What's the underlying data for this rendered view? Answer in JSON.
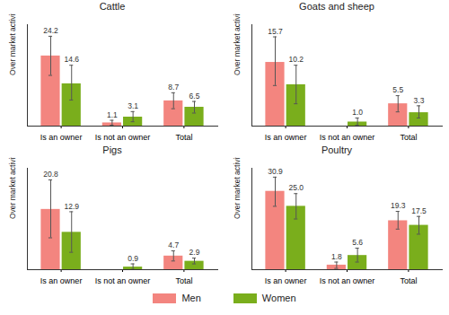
{
  "chart_data": [
    {
      "type": "bar",
      "title": "Cattle",
      "ylabel": "Over market activities (%)",
      "categories": [
        "Is an owner",
        "Is not an owner",
        "Total"
      ],
      "series": [
        {
          "name": "Men",
          "color": "#f3857f",
          "values": [
            24.2,
            1.1,
            8.7
          ],
          "value_labels": [
            "24.2",
            "1.1",
            "8.7"
          ],
          "error_low": [
            17.5,
            0.3,
            6.0
          ],
          "error_high": [
            31.0,
            2.0,
            11.5
          ]
        },
        {
          "name": "Women",
          "color": "#7aae1c",
          "values": [
            14.6,
            3.1,
            6.5
          ],
          "value_labels": [
            "14.6",
            "3.1",
            "6.5"
          ],
          "error_low": [
            9.0,
            1.5,
            4.5
          ],
          "error_high": [
            21.0,
            5.0,
            8.5
          ]
        }
      ],
      "ylim": [
        0,
        35
      ],
      "tick_labels": "x",
      "data_labels": true,
      "legend": "bottom"
    },
    {
      "type": "bar",
      "title": "Goats and sheep",
      "ylabel": "Over market activities (%)",
      "categories": [
        "Is an owner",
        "Is not an owner",
        "Total"
      ],
      "series": [
        {
          "name": "Men",
          "color": "#f3857f",
          "values": [
            15.7,
            null,
            5.5
          ],
          "value_labels": [
            "15.7",
            null,
            "5.5"
          ],
          "error_low": [
            10.0,
            null,
            3.5
          ],
          "error_high": [
            22.0,
            null,
            7.5
          ]
        },
        {
          "name": "Women",
          "color": "#7aae1c",
          "values": [
            10.2,
            1.0,
            3.3
          ],
          "value_labels": [
            "10.2",
            "1.0",
            "3.3"
          ],
          "error_low": [
            5.5,
            0.2,
            2.0
          ],
          "error_high": [
            15.0,
            2.0,
            5.0
          ]
        }
      ],
      "ylim": [
        0,
        25
      ],
      "tick_labels": "x",
      "data_labels": true,
      "legend": "bottom"
    },
    {
      "type": "bar",
      "title": "Pigs",
      "ylabel": "Over market activities (%)",
      "categories": [
        "Is an owner",
        "Is not an owner",
        "Total"
      ],
      "series": [
        {
          "name": "Men",
          "color": "#f3857f",
          "values": [
            20.8,
            null,
            4.7
          ],
          "value_labels": [
            "20.8",
            null,
            "4.7"
          ],
          "error_low": [
            11.0,
            null,
            3.0
          ],
          "error_high": [
            31.0,
            null,
            6.5
          ]
        },
        {
          "name": "Women",
          "color": "#7aae1c",
          "values": [
            12.9,
            0.9,
            2.9
          ],
          "value_labels": [
            "12.9",
            "0.9",
            "2.9"
          ],
          "error_low": [
            6.0,
            0.1,
            2.0
          ],
          "error_high": [
            20.0,
            2.0,
            4.0
          ]
        }
      ],
      "ylim": [
        0,
        35
      ],
      "tick_labels": "x",
      "data_labels": true,
      "legend": "bottom"
    },
    {
      "type": "bar",
      "title": "Poultry",
      "ylabel": "Over market activities (%)",
      "categories": [
        "Is an owner",
        "Is not an owner",
        "Total"
      ],
      "series": [
        {
          "name": "Men",
          "color": "#f3857f",
          "values": [
            30.9,
            1.8,
            19.3
          ],
          "value_labels": [
            "30.9",
            "1.8",
            "19.3"
          ],
          "error_low": [
            25.0,
            0.5,
            16.0
          ],
          "error_high": [
            36.5,
            3.0,
            23.0
          ]
        },
        {
          "name": "Women",
          "color": "#7aae1c",
          "values": [
            25,
            5.6,
            17.5
          ],
          "value_labels": [
            "25.0",
            "5.6",
            "17.5"
          ],
          "error_low": [
            20.0,
            3.0,
            14.0
          ],
          "error_high": [
            30.0,
            8.5,
            21.0
          ]
        }
      ],
      "ylim": [
        0,
        40
      ],
      "tick_labels": "x",
      "data_labels": true,
      "legend": "bottom"
    }
  ]
}
